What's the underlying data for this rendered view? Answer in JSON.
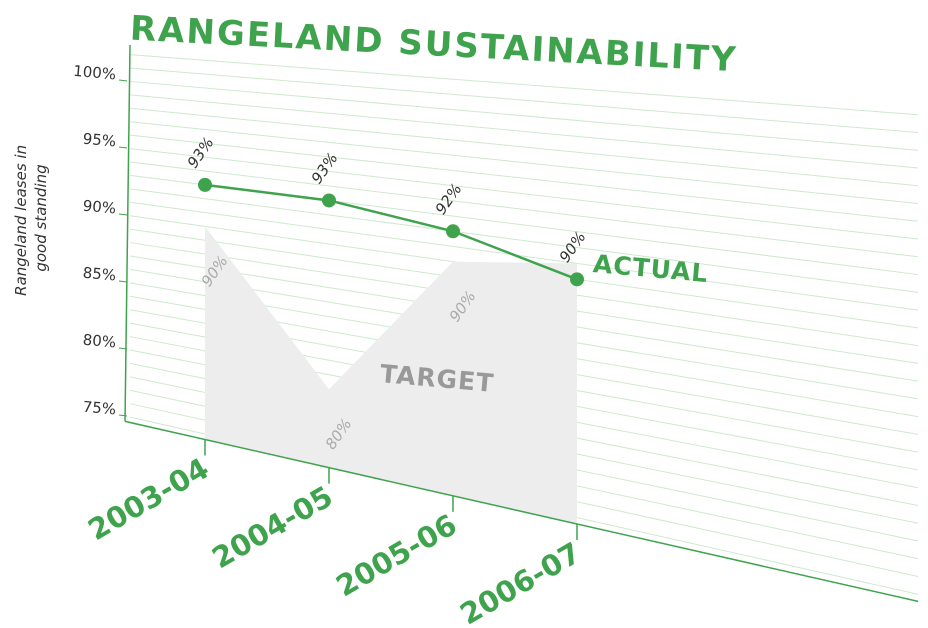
{
  "chart_data": {
    "type": "line",
    "title": "RANGELAND SUSTAINABILITY",
    "y_label": [
      "Rangeland leases in",
      "good standing"
    ],
    "categories": [
      "2003-04",
      "2004-05",
      "2005-06",
      "2006-07"
    ],
    "series": [
      {
        "name": "ACTUAL",
        "color": "#3fa34d",
        "values": [
          93,
          93,
          92,
          90
        ],
        "value_labels": [
          "93%",
          "93%",
          "92%",
          "90%"
        ]
      },
      {
        "name": "TARGET",
        "color": "#ededed",
        "values": [
          90,
          80,
          90,
          91
        ],
        "value_labels": [
          "90%",
          "80%",
          "90%",
          null
        ]
      }
    ],
    "ylim": [
      74.6,
      102.6
    ],
    "yticks": [
      {
        "value": 75,
        "label": "75%"
      },
      {
        "value": 80,
        "label": "80%"
      },
      {
        "value": 85,
        "label": "85%"
      },
      {
        "value": 90,
        "label": "90%"
      },
      {
        "value": 95,
        "label": "95%"
      },
      {
        "value": 100,
        "label": "100%"
      }
    ],
    "grid_lines": [
      75,
      76,
      77,
      78,
      79,
      80,
      81,
      82,
      83,
      84,
      85,
      86,
      87,
      88,
      89,
      90,
      91,
      92,
      93,
      94,
      95,
      96,
      97,
      98,
      99,
      100,
      101,
      102
    ],
    "grid": true
  }
}
